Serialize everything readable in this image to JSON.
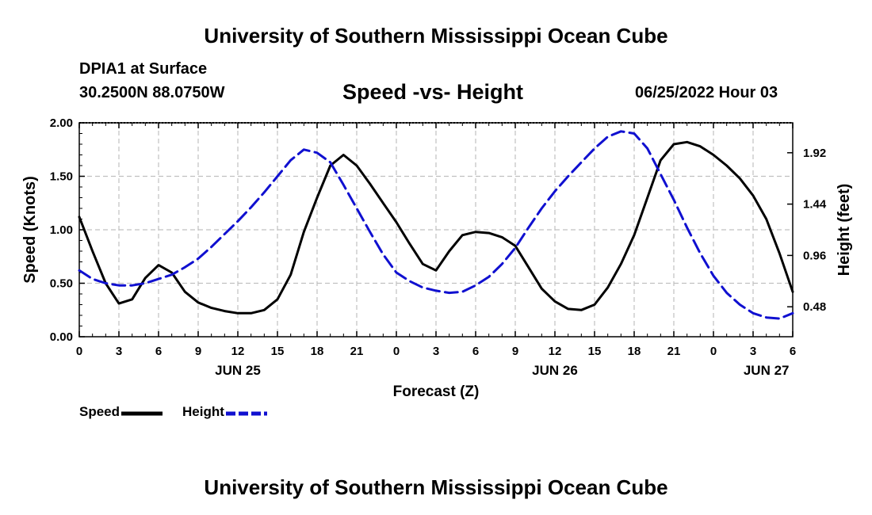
{
  "header": {
    "title": "University of Southern Mississippi Ocean Cube",
    "station": "DPIA1 at Surface",
    "coordinates": "30.2500N  88.0750W",
    "datetime": "06/25/2022 Hour 03"
  },
  "footer": {
    "title": "University of Southern Mississippi Ocean Cube"
  },
  "colors": {
    "speed": "#000000",
    "height": "#1010d0",
    "grid": "#c0c0c0"
  },
  "chart_data": {
    "type": "line",
    "title": "Speed -vs- Height",
    "xlabel": "Forecast (Z)",
    "ylabel": "Speed (Knots)",
    "y2label": "Height (feet)",
    "xlim": [
      0,
      54
    ],
    "ylim": [
      0,
      2.0
    ],
    "y2lim": [
      0.2,
      2.2
    ],
    "x_ticks": [
      0,
      3,
      6,
      9,
      12,
      15,
      18,
      21,
      24,
      27,
      30,
      33,
      36,
      39,
      42,
      45,
      48,
      51,
      54
    ],
    "x_tick_labels": [
      "0",
      "3",
      "6",
      "9",
      "12",
      "15",
      "18",
      "21",
      "0",
      "3",
      "6",
      "9",
      "12",
      "15",
      "18",
      "21",
      "0",
      "3",
      "6"
    ],
    "day_labels": [
      {
        "x": 12,
        "label": "JUN 25"
      },
      {
        "x": 36,
        "label": "JUN 26"
      },
      {
        "x": 52,
        "label": "JUN 27"
      }
    ],
    "y_ticks": [
      0,
      0.5,
      1.0,
      1.5,
      2.0
    ],
    "y_tick_labels": [
      "0.00",
      "0.50",
      "1.00",
      "1.50",
      "2.00"
    ],
    "y2_ticks": [
      0.48,
      0.96,
      1.44,
      1.92
    ],
    "y2_tick_labels": [
      "0.48",
      "0.96",
      "1.44",
      "1.92"
    ],
    "grid": true,
    "series": [
      {
        "name": "Speed",
        "axis": "left",
        "style": "solid",
        "x": [
          0,
          1,
          2,
          3,
          4,
          5,
          6,
          7,
          8,
          9,
          10,
          11,
          12,
          13,
          14,
          15,
          16,
          17,
          18,
          19,
          20,
          21,
          22,
          23,
          24,
          25,
          26,
          27,
          28,
          29,
          30,
          31,
          32,
          33,
          34,
          35,
          36,
          37,
          38,
          39,
          40,
          41,
          42,
          43,
          44,
          45,
          46,
          47,
          48,
          49,
          50,
          51,
          52,
          53,
          54
        ],
        "values": [
          1.12,
          0.8,
          0.5,
          0.31,
          0.35,
          0.55,
          0.67,
          0.6,
          0.42,
          0.32,
          0.27,
          0.24,
          0.22,
          0.22,
          0.25,
          0.35,
          0.58,
          0.98,
          1.3,
          1.6,
          1.7,
          1.6,
          1.43,
          1.25,
          1.07,
          0.87,
          0.68,
          0.62,
          0.8,
          0.95,
          0.98,
          0.97,
          0.93,
          0.85,
          0.65,
          0.45,
          0.33,
          0.26,
          0.25,
          0.3,
          0.46,
          0.68,
          0.95,
          1.3,
          1.65,
          1.8,
          1.82,
          1.78,
          1.7,
          1.6,
          1.48,
          1.32,
          1.1,
          0.78,
          0.42
        ]
      },
      {
        "name": "Height",
        "axis": "right",
        "style": "dashed",
        "x": [
          0,
          1,
          2,
          3,
          4,
          5,
          6,
          7,
          8,
          9,
          10,
          11,
          12,
          13,
          14,
          15,
          16,
          17,
          18,
          19,
          20,
          21,
          22,
          23,
          24,
          25,
          26,
          27,
          28,
          29,
          30,
          31,
          32,
          33,
          34,
          35,
          36,
          37,
          38,
          39,
          40,
          41,
          42,
          43,
          44,
          45,
          46,
          47,
          48,
          49,
          50,
          51,
          52,
          53,
          54
        ],
        "values": [
          0.82,
          0.74,
          0.7,
          0.68,
          0.68,
          0.7,
          0.74,
          0.78,
          0.85,
          0.93,
          1.04,
          1.16,
          1.28,
          1.41,
          1.55,
          1.7,
          1.85,
          1.95,
          1.92,
          1.83,
          1.62,
          1.4,
          1.18,
          0.97,
          0.8,
          0.72,
          0.66,
          0.63,
          0.61,
          0.62,
          0.68,
          0.76,
          0.88,
          1.03,
          1.22,
          1.4,
          1.56,
          1.7,
          1.83,
          1.96,
          2.07,
          2.12,
          2.1,
          1.96,
          1.72,
          1.48,
          1.22,
          0.98,
          0.77,
          0.61,
          0.5,
          0.42,
          0.38,
          0.37,
          0.42
        ]
      }
    ],
    "legend": [
      {
        "label": "Speed",
        "color": "#000000",
        "style": "solid"
      },
      {
        "label": "Height",
        "color": "#1010d0",
        "style": "dashed"
      }
    ]
  }
}
